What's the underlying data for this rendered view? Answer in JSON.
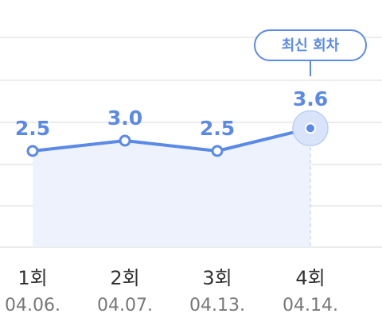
{
  "chart_data": {
    "type": "line",
    "categories": [
      "1회",
      "2회",
      "3회",
      "4회"
    ],
    "dates": [
      "04.06.",
      "04.07.",
      "04.13.",
      "04.14."
    ],
    "values": [
      2.5,
      3.0,
      2.5,
      3.6
    ],
    "value_labels": [
      "2.5",
      "3.0",
      "2.5",
      "3.6"
    ],
    "highlight_index": 3,
    "highlight_label": "최신 회차",
    "grid": true,
    "area_fill": true
  },
  "colors": {
    "accent": "#5b8ae6",
    "area": "#edf2fc",
    "grid": "#ececec",
    "halo": "#d9e4fa"
  }
}
